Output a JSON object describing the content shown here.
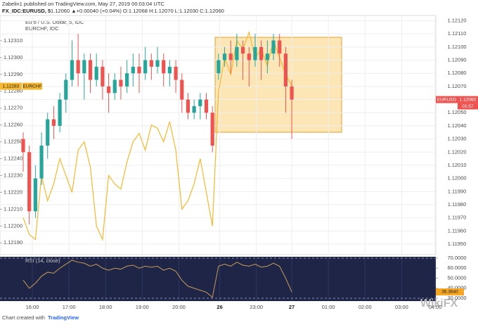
{
  "header": {
    "publisher": "Zabelin1 published on TradingView.com, May 27, 2019 00:03:04 UTC",
    "symbol": "FX_IDC:EURUSD, 5",
    "quote": "1.12060 ▲+0.00040 (+0.04%) O:1.12068 H:1.12070 L:1.12030 C:1.12060"
  },
  "footer": {
    "prefix": "Chart created with",
    "brand": "TradingView",
    "watermark": "WikiFX"
  },
  "chart_data": [
    {
      "type": "candlestick",
      "title": "Euro / U.S. Dollar, 5, IDC",
      "symbol": "EURUSD",
      "last_label": "1.12060",
      "countdown": "01:57",
      "up_color": "#26a69a",
      "down_color": "#ef5350",
      "x": [
        0,
        1,
        2,
        3,
        4,
        5,
        6,
        7,
        8,
        9,
        10,
        11,
        12,
        13,
        14,
        15,
        16,
        17,
        18,
        19,
        20,
        21,
        22,
        23,
        24,
        25,
        26,
        27,
        28,
        29,
        30,
        31,
        32,
        33,
        34,
        35,
        36,
        37,
        38,
        39,
        40,
        41,
        42,
        43,
        44
      ],
      "open": [
        1.1203,
        1.1202,
        1.11975,
        1.12,
        1.12025,
        1.12045,
        1.1204,
        1.1206,
        1.12075,
        1.1209,
        1.1208,
        1.1209,
        1.12075,
        1.12085,
        1.1207,
        1.12065,
        1.12075,
        1.1207,
        1.1208,
        1.12085,
        1.1208,
        1.1209,
        1.12085,
        1.1209,
        1.1208,
        1.12085,
        1.12075,
        1.1206,
        1.1205,
        1.12055,
        1.1206,
        1.1205,
        1.1208,
        1.1209,
        1.12095,
        1.1209,
        1.121,
        1.12095,
        1.1209,
        1.121,
        1.1209,
        1.12095,
        1.12105,
        1.12095,
        1.1207
      ],
      "high": [
        1.12035,
        1.12025,
        1.1201,
        1.12035,
        1.1205,
        1.12055,
        1.12065,
        1.1208,
        1.12105,
        1.1211,
        1.12095,
        1.12095,
        1.12095,
        1.1209,
        1.1208,
        1.1208,
        1.12085,
        1.1209,
        1.12095,
        1.12095,
        1.121,
        1.12095,
        1.121,
        1.12095,
        1.1209,
        1.1209,
        1.1208,
        1.12065,
        1.1206,
        1.12065,
        1.12065,
        1.12055,
        1.12095,
        1.121,
        1.12105,
        1.1211,
        1.12105,
        1.121,
        1.1211,
        1.12105,
        1.12105,
        1.1211,
        1.1211,
        1.121,
        1.12075
      ],
      "low": [
        1.12005,
        1.11965,
        1.1197,
        1.11995,
        1.12015,
        1.1203,
        1.12035,
        1.1205,
        1.1207,
        1.1207,
        1.1206,
        1.12065,
        1.1207,
        1.1206,
        1.1205,
        1.1206,
        1.1206,
        1.12065,
        1.1207,
        1.12065,
        1.12075,
        1.12075,
        1.1208,
        1.1207,
        1.1207,
        1.12065,
        1.1205,
        1.12045,
        1.12045,
        1.12045,
        1.12045,
        1.1202,
        1.12075,
        1.12085,
        1.1208,
        1.12085,
        1.12075,
        1.1207,
        1.12085,
        1.12075,
        1.1208,
        1.1209,
        1.12085,
        1.1205,
        1.1203
      ],
      "close": [
        1.1202,
        1.11975,
        1.12,
        1.12025,
        1.12045,
        1.1204,
        1.1206,
        1.12075,
        1.1209,
        1.1208,
        1.1209,
        1.12075,
        1.12085,
        1.1207,
        1.12065,
        1.12075,
        1.1207,
        1.1208,
        1.12085,
        1.1208,
        1.1209,
        1.12085,
        1.1209,
        1.1208,
        1.12085,
        1.12075,
        1.1206,
        1.1205,
        1.12055,
        1.1206,
        1.1205,
        1.12025,
        1.1209,
        1.12095,
        1.1209,
        1.121,
        1.12095,
        1.1209,
        1.121,
        1.1209,
        1.12095,
        1.12105,
        1.12095,
        1.1207,
        1.1206
      ],
      "series": [
        {
          "name": "EURCHF, IDC",
          "symbol": "EURCHF",
          "color": "#f5b82e",
          "axis": "y2",
          "values": [
            1.12205,
            1.12195,
            1.12192,
            1.1223,
            1.12215,
            1.12225,
            1.1224,
            1.1223,
            1.1222,
            1.12245,
            1.1225,
            1.12235,
            1.122,
            1.12192,
            1.1223,
            1.12225,
            1.12222,
            1.12238,
            1.1225,
            1.12255,
            1.12245,
            1.1226,
            1.12258,
            1.1225,
            1.12262,
            1.12245,
            1.1221,
            1.12215,
            1.12225,
            1.1224,
            1.1222,
            1.122,
            1.1228,
            1.123,
            1.1229,
            1.1231,
            1.12305,
            1.12315,
            1.123,
            1.12305,
            1.12295,
            1.1231,
            1.123,
            1.1229,
            1.12283
          ]
        }
      ],
      "xlim": [
        -3.8,
        67.6
      ],
      "xticks": [
        {
          "value": 1.5,
          "label": "16:00"
        },
        {
          "value": 7.5,
          "label": "17:00"
        },
        {
          "value": 13.5,
          "label": "18:00"
        },
        {
          "value": 19.5,
          "label": "19:00"
        },
        {
          "value": 25.5,
          "label": "20:00"
        },
        {
          "value": 32.2,
          "label": "26"
        },
        {
          "value": 38.2,
          "label": "23:00"
        },
        {
          "value": 44,
          "label": "27"
        },
        {
          "value": 50,
          "label": "01:00"
        },
        {
          "value": 56,
          "label": "02:00"
        },
        {
          "value": 62,
          "label": "03:00"
        },
        {
          "value": 67.5,
          "label": "04:00"
        }
      ],
      "ylim": [
        1.11942,
        1.12124
      ],
      "yticks": [
        {
          "value": 1.1212,
          "label": "1.12120"
        },
        {
          "value": 1.1211,
          "label": "1.12110"
        },
        {
          "value": 1.121,
          "label": "1.12100"
        },
        {
          "value": 1.1209,
          "label": "1.12090"
        },
        {
          "value": 1.1208,
          "label": "1.12080"
        },
        {
          "value": 1.1207,
          "label": "1.12070"
        },
        {
          "value": 1.1206,
          "label": "1.12060"
        },
        {
          "value": 1.1205,
          "label": "1.12050"
        },
        {
          "value": 1.1204,
          "label": "1.12040"
        },
        {
          "value": 1.1203,
          "label": "1.12030"
        },
        {
          "value": 1.1202,
          "label": "1.12020"
        },
        {
          "value": 1.1201,
          "label": "1.12010"
        },
        {
          "value": 1.12,
          "label": "1.12000"
        },
        {
          "value": 1.1199,
          "label": "1.11990"
        },
        {
          "value": 1.1198,
          "label": "1.11980"
        },
        {
          "value": 1.1197,
          "label": "1.11970"
        },
        {
          "value": 1.1196,
          "label": "1.11960"
        },
        {
          "value": 1.1195,
          "label": "1.11950"
        }
      ],
      "y2lim": [
        1.12183,
        1.12325
      ],
      "y2ticks": [
        {
          "value": 1.1231,
          "label": "1.12310"
        },
        {
          "value": 1.123,
          "label": "1.12300"
        },
        {
          "value": 1.1229,
          "label": "1.12290"
        },
        {
          "value": 1.1228,
          "label": "1.12280"
        },
        {
          "value": 1.1227,
          "label": "1.12270"
        },
        {
          "value": 1.1226,
          "label": "1.12260"
        },
        {
          "value": 1.1225,
          "label": "1.12250"
        },
        {
          "value": 1.1224,
          "label": "1.12240"
        },
        {
          "value": 1.1223,
          "label": "1.12230"
        },
        {
          "value": 1.1222,
          "label": "1.12220"
        },
        {
          "value": 1.1221,
          "label": "1.12210"
        },
        {
          "value": 1.122,
          "label": "1.12200"
        },
        {
          "value": 1.1219,
          "label": "1.12190"
        }
      ],
      "grid": true
    },
    {
      "type": "line",
      "title": "RSI (14, close)",
      "color": "#c79a5a",
      "last_label": "36.3640",
      "values": [
        48,
        40,
        45,
        52,
        56,
        55,
        60,
        64,
        68,
        66,
        65,
        62,
        64,
        60,
        58,
        60,
        59,
        62,
        63,
        60,
        62,
        61,
        62,
        58,
        60,
        57,
        48,
        42,
        40,
        38,
        36,
        31,
        62,
        64,
        62,
        66,
        63,
        62,
        64,
        61,
        62,
        65,
        62,
        50,
        36.364
      ],
      "ylim": [
        27.2,
        71.4
      ],
      "yticks": [
        {
          "value": 70,
          "label": "70.0000"
        },
        {
          "value": 60,
          "label": "60.0000"
        },
        {
          "value": 50,
          "label": "50.0000"
        },
        {
          "value": 40,
          "label": "40.0000"
        },
        {
          "value": 30,
          "label": "30.0000"
        }
      ],
      "bands": [
        70,
        30
      ]
    }
  ]
}
